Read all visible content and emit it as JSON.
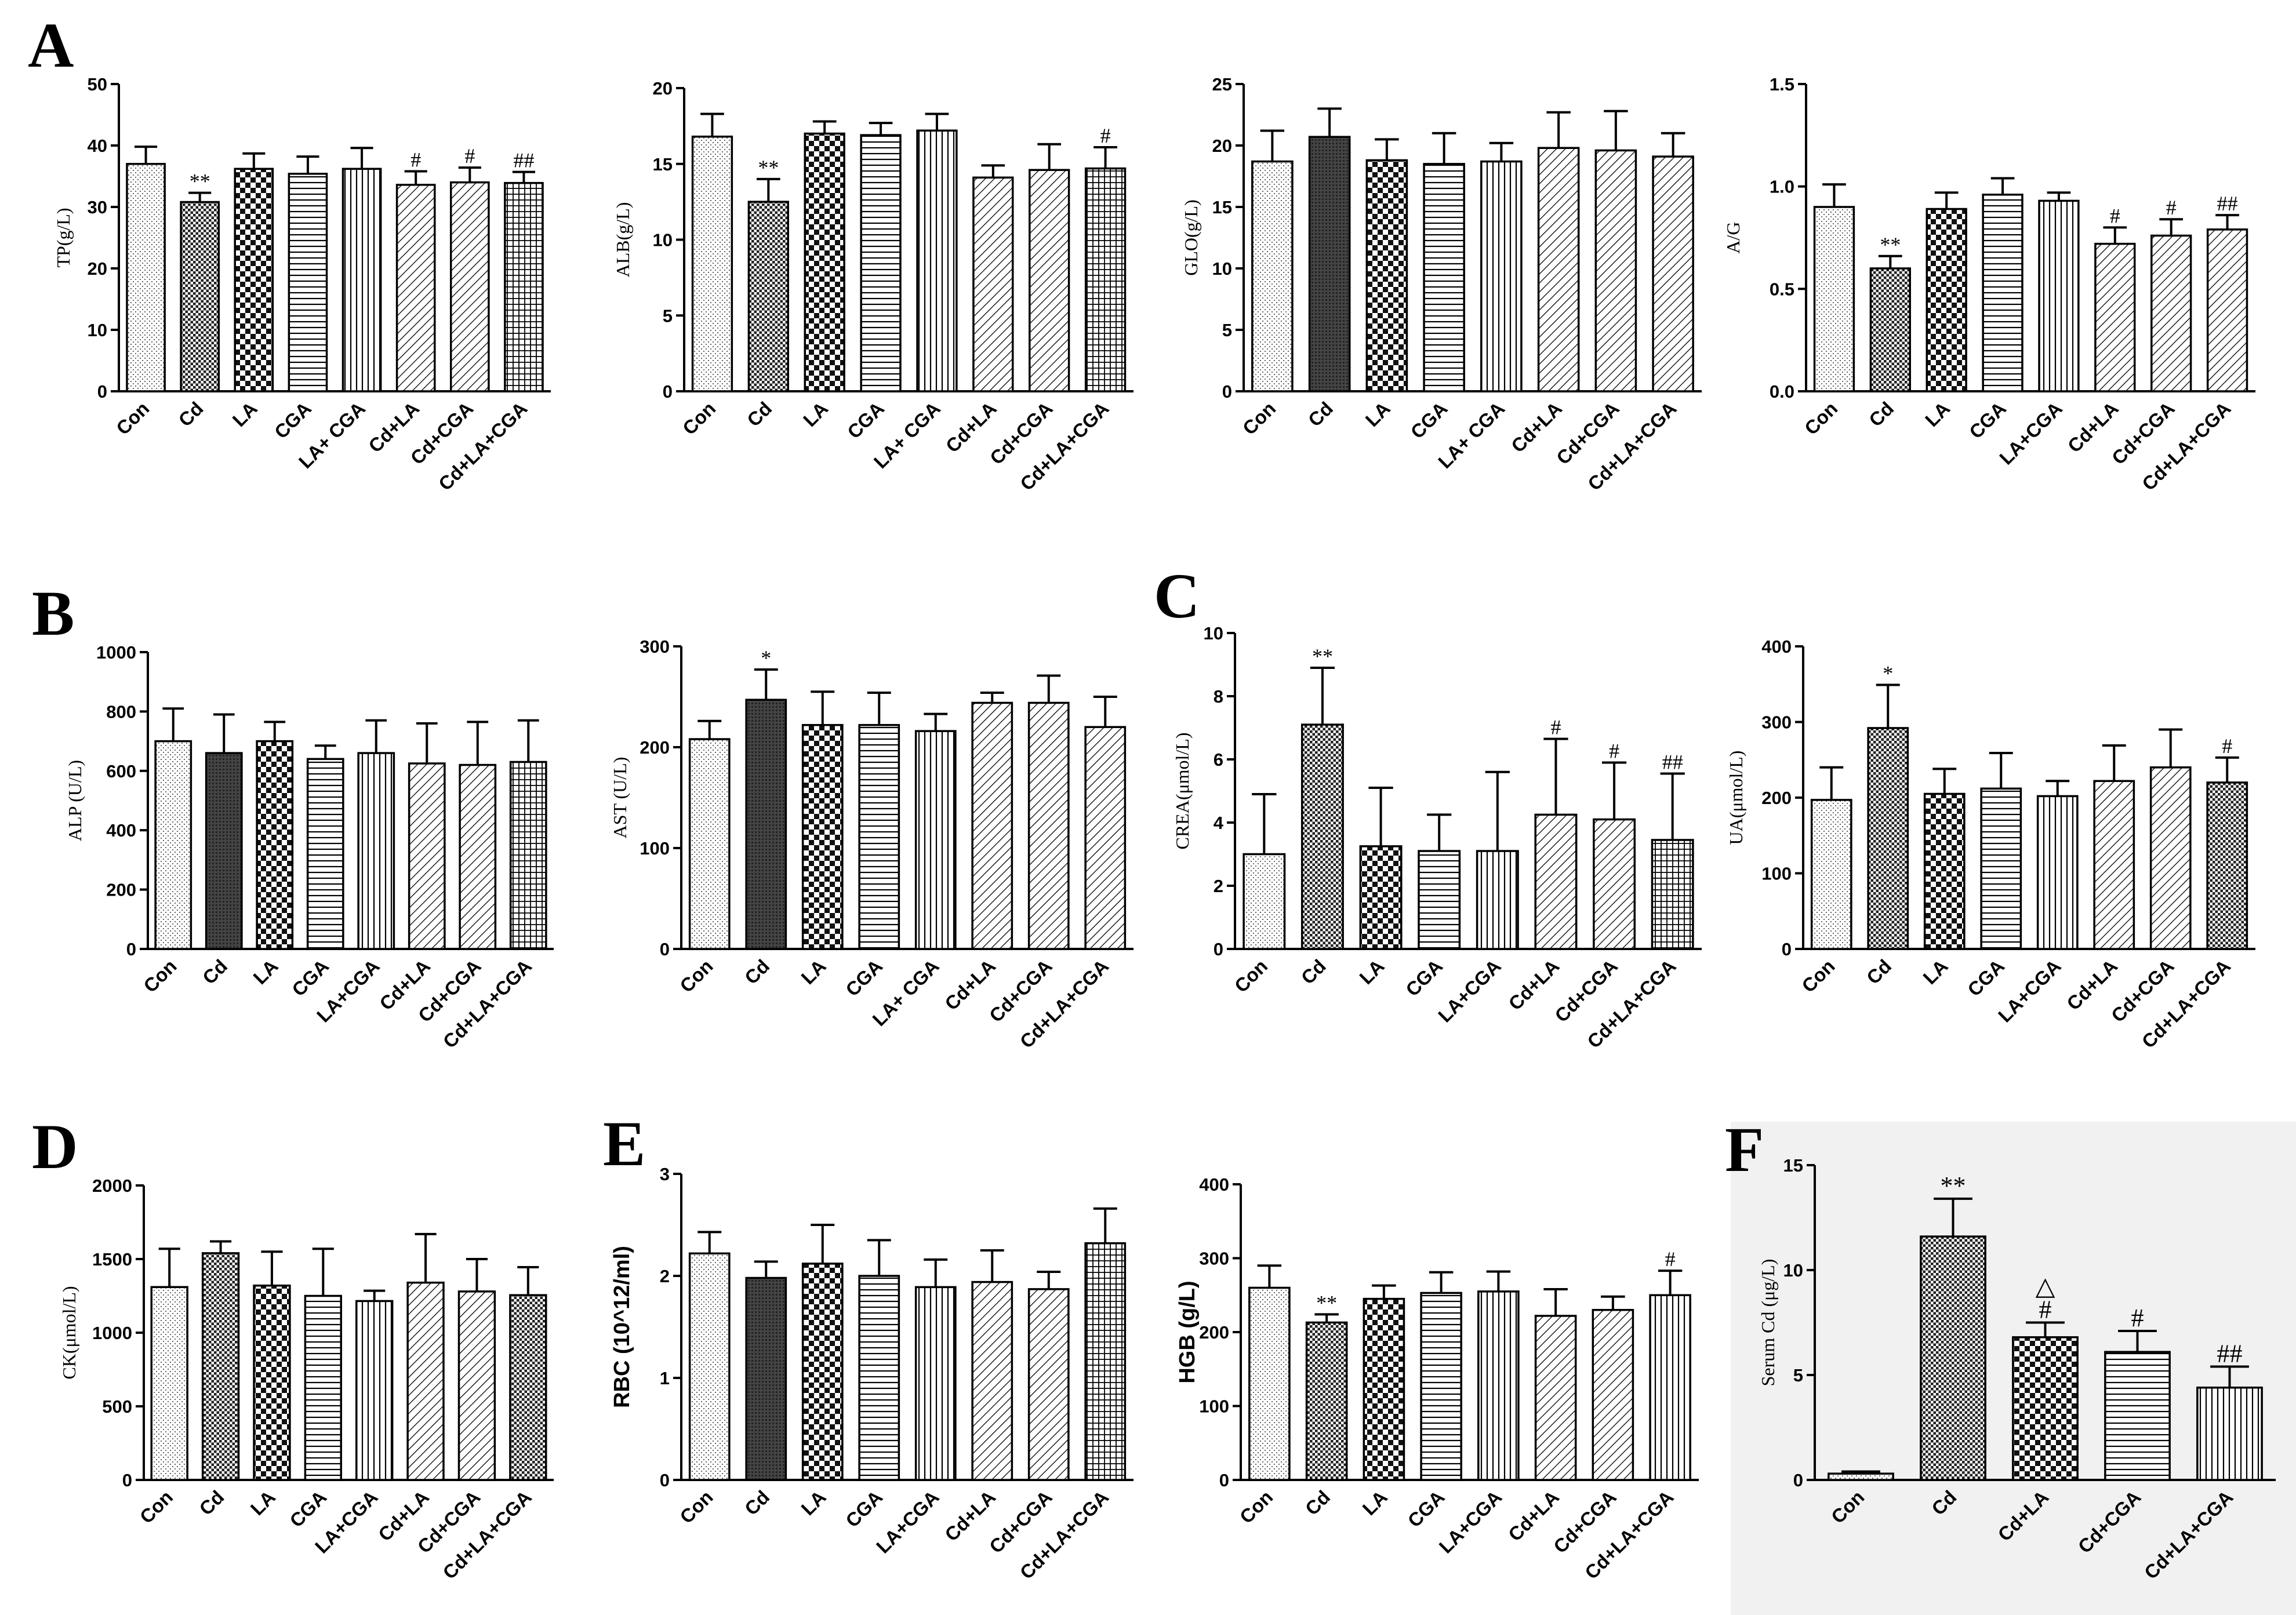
{
  "figure": {
    "panel_labels": [
      {
        "text": "A",
        "x": 48,
        "y": 115
      },
      {
        "text": "B",
        "x": 55,
        "y": 1095
      },
      {
        "text": "C",
        "x": 1990,
        "y": 1065
      },
      {
        "text": "D",
        "x": 55,
        "y": 2015
      },
      {
        "text": "E",
        "x": 1040,
        "y": 2010
      },
      {
        "text": "F",
        "x": 2975,
        "y": 2020
      }
    ]
  },
  "colors": {
    "background_panel_F": "#f1f1f1",
    "bar_fill": "#ffffff",
    "ink": "#000000"
  },
  "chart_data": [
    {
      "id": "tp",
      "type": "bar",
      "title": "",
      "ylabel": "TP(g/L)",
      "ylim": [
        0,
        50
      ],
      "yticks": [
        0,
        10,
        20,
        30,
        40,
        50
      ],
      "categories": [
        "Con",
        "Cd",
        "LA",
        "CGA",
        "LA+ CGA",
        "Cd+LA",
        "Cd+CGA",
        "Cd+LA+CGA"
      ],
      "values": [
        37,
        30.8,
        36.2,
        35.4,
        36.2,
        33.6,
        34,
        33.9
      ],
      "errors": [
        2.8,
        1.5,
        2.5,
        2.8,
        3.4,
        2.2,
        2.4,
        1.8
      ],
      "annotations": [
        "",
        "**",
        "",
        "",
        "",
        "#",
        "#",
        "##"
      ],
      "patterns": [
        "dots",
        "check",
        "bigcheck",
        "hlines",
        "vlines",
        "diag",
        "diag",
        "grid"
      ]
    },
    {
      "id": "alb",
      "type": "bar",
      "title": "",
      "ylabel": "ALB(g/L)",
      "ylim": [
        0,
        20
      ],
      "yticks": [
        0,
        5,
        10,
        15,
        20
      ],
      "categories": [
        "Con",
        "Cd",
        "LA",
        "CGA",
        "LA+ CGA",
        "Cd+LA",
        "Cd+CGA",
        "Cd+LA+CGA"
      ],
      "values": [
        16.8,
        12.5,
        17,
        16.9,
        17.2,
        14.1,
        14.6,
        14.7
      ],
      "errors": [
        1.5,
        1.5,
        0.8,
        0.8,
        1.1,
        0.8,
        1.7,
        1.4
      ],
      "annotations": [
        "",
        "**",
        "",
        "",
        "",
        "",
        "",
        "#"
      ],
      "patterns": [
        "dots",
        "check",
        "bigcheck",
        "hlines",
        "vlines",
        "diag",
        "diag",
        "grid"
      ]
    },
    {
      "id": "glo",
      "type": "bar",
      "title": "",
      "ylabel": "GLO(g/L)",
      "ylim": [
        0,
        25
      ],
      "yticks": [
        0,
        5,
        10,
        15,
        20,
        25
      ],
      "categories": [
        "Con",
        "Cd",
        "LA",
        "CGA",
        "LA+ CGA",
        "Cd+LA",
        "Cd+CGA",
        "Cd+LA+CGA"
      ],
      "values": [
        18.7,
        20.7,
        18.8,
        18.5,
        18.7,
        19.8,
        19.6,
        19.1
      ],
      "errors": [
        2.5,
        2.3,
        1.7,
        2.5,
        1.5,
        2.9,
        3.2,
        1.9
      ],
      "annotations": [
        "",
        "",
        "",
        "",
        "",
        "",
        "",
        ""
      ],
      "patterns": [
        "dots",
        "dark",
        "bigcheck",
        "hlines",
        "vlines",
        "diag",
        "diag",
        "diag"
      ]
    },
    {
      "id": "ag",
      "type": "bar",
      "title": "",
      "ylabel": "A/G",
      "ylim": [
        0,
        1.5
      ],
      "yticks": [
        "0.0",
        "0.5",
        "1.0",
        "1.5"
      ],
      "categories": [
        "Con",
        "Cd",
        "LA",
        "CGA",
        "LA+CGA",
        "Cd+LA",
        "Cd+CGA",
        "Cd+LA+CGA"
      ],
      "values": [
        0.9,
        0.6,
        0.89,
        0.96,
        0.93,
        0.72,
        0.76,
        0.79
      ],
      "errors": [
        0.11,
        0.06,
        0.08,
        0.08,
        0.04,
        0.08,
        0.08,
        0.07
      ],
      "annotations": [
        "",
        "**",
        "",
        "",
        "",
        "#",
        "#",
        "##"
      ],
      "patterns": [
        "dots",
        "check",
        "bigcheck",
        "hlines",
        "vlines",
        "diag",
        "diag",
        "diag"
      ]
    },
    {
      "id": "alp",
      "type": "bar",
      "title": "",
      "ylabel": "ALP (U/L)",
      "ylim": [
        0,
        1000
      ],
      "yticks": [
        0,
        200,
        400,
        600,
        800,
        1000
      ],
      "categories": [
        "Con",
        "Cd",
        "LA",
        "CGA",
        "LA+CGA",
        "Cd+LA",
        "Cd+CGA",
        "Cd+LA+CGA"
      ],
      "values": [
        700,
        660,
        700,
        640,
        660,
        625,
        620,
        630
      ],
      "errors": [
        110,
        130,
        65,
        45,
        110,
        135,
        145,
        140
      ],
      "annotations": [
        "",
        "",
        "",
        "",
        "",
        "",
        "",
        ""
      ],
      "patterns": [
        "dots",
        "dark",
        "bigcheck",
        "hlines",
        "vlines",
        "diag",
        "diag",
        "grid"
      ]
    },
    {
      "id": "ast",
      "type": "bar",
      "title": "",
      "ylabel": "AST (U/L)",
      "ylim": [
        0,
        300
      ],
      "yticks": [
        0,
        100,
        200,
        300
      ],
      "categories": [
        "Con",
        "Cd",
        "LA",
        "CGA",
        "LA+ CGA",
        "Cd+LA",
        "Cd+CGA",
        "Cd+LA+CGA"
      ],
      "values": [
        208,
        247,
        222,
        222,
        216,
        244,
        244,
        220
      ],
      "errors": [
        18,
        30,
        33,
        32,
        17,
        10,
        27,
        30
      ],
      "annotations": [
        "",
        "*",
        "",
        "",
        "",
        "",
        "",
        ""
      ],
      "patterns": [
        "dots",
        "dark",
        "bigcheck",
        "hlines",
        "vlines",
        "diag",
        "diag",
        "diag"
      ]
    },
    {
      "id": "crea",
      "type": "bar",
      "title": "",
      "ylabel": "CREA(μmol/L)",
      "ylim": [
        0,
        10
      ],
      "yticks": [
        0,
        2,
        4,
        6,
        8,
        10
      ],
      "categories": [
        "Con",
        "Cd",
        "LA",
        "CGA",
        "LA+CGA",
        "Cd+LA",
        "Cd+CGA",
        "Cd+LA+CGA"
      ],
      "values": [
        3,
        7.1,
        3.25,
        3.1,
        3.1,
        4.25,
        4.1,
        3.45
      ],
      "errors": [
        1.9,
        1.8,
        1.85,
        1.15,
        2.5,
        2.4,
        1.8,
        2.1
      ],
      "annotations": [
        "",
        "**",
        "",
        "",
        "",
        "#",
        "#",
        "##"
      ],
      "patterns": [
        "dots",
        "check",
        "bigcheck",
        "hlines",
        "vlines",
        "diag",
        "diag",
        "grid"
      ]
    },
    {
      "id": "ua",
      "type": "bar",
      "title": "",
      "ylabel": "UA(μmol/L)",
      "ylim": [
        0,
        400
      ],
      "yticks": [
        0,
        100,
        200,
        300,
        400
      ],
      "categories": [
        "Con",
        "Cd",
        "LA",
        "CGA",
        "LA+CGA",
        "Cd+LA",
        "Cd+CGA",
        "Cd+LA+CGA"
      ],
      "values": [
        197,
        292,
        205,
        212,
        202,
        222,
        240,
        220
      ],
      "errors": [
        43,
        57,
        33,
        47,
        20,
        47,
        50,
        33
      ],
      "annotations": [
        "",
        "*",
        "",
        "",
        "",
        "",
        "",
        "#"
      ],
      "patterns": [
        "dots",
        "check",
        "bigcheck",
        "hlines",
        "vlines",
        "diag",
        "diag",
        "check"
      ]
    },
    {
      "id": "ck",
      "type": "bar",
      "title": "",
      "ylabel": "CK(μmol/L)",
      "ylim": [
        0,
        2000
      ],
      "yticks": [
        0,
        500,
        1000,
        1500,
        2000
      ],
      "categories": [
        "Con",
        "Cd",
        "LA",
        "CGA",
        "LA+CGA",
        "Cd+LA",
        "Cd+CGA",
        "Cd+LA+CGA"
      ],
      "values": [
        1310,
        1540,
        1320,
        1250,
        1215,
        1340,
        1280,
        1255
      ],
      "errors": [
        260,
        80,
        230,
        320,
        70,
        330,
        220,
        190
      ],
      "annotations": [
        "",
        "",
        "",
        "",
        "",
        "",
        "",
        ""
      ],
      "patterns": [
        "dots",
        "check",
        "bigcheck",
        "hlines",
        "vlines",
        "diag",
        "diag",
        "check"
      ]
    },
    {
      "id": "rbc",
      "type": "bar",
      "title": "",
      "ylabel": "RBC (10^12/ml)",
      "ylim": [
        0,
        3
      ],
      "yticks": [
        0,
        1,
        2,
        3
      ],
      "categories": [
        "Con",
        "Cd",
        "LA",
        "CGA",
        "LA+CGA",
        "Cd+LA",
        "Cd+CGA",
        "Cd+LA+CGA"
      ],
      "values": [
        2.22,
        1.98,
        2.12,
        2.0,
        1.89,
        1.94,
        1.87,
        2.32
      ],
      "errors": [
        0.21,
        0.16,
        0.38,
        0.35,
        0.27,
        0.31,
        0.17,
        0.34
      ],
      "annotations": [
        "",
        "",
        "",
        "",
        "",
        "",
        "",
        ""
      ],
      "patterns": [
        "dots",
        "dark",
        "bigcheck",
        "hlines",
        "vlines",
        "diag",
        "diag",
        "grid"
      ]
    },
    {
      "id": "hgb",
      "type": "bar",
      "title": "",
      "ylabel": "HGB (g/L)",
      "ylim": [
        0,
        400
      ],
      "yticks": [
        0,
        100,
        200,
        300,
        400
      ],
      "categories": [
        "Con",
        "Cd",
        "LA",
        "CGA",
        "LA+CGA",
        "Cd+LA",
        "Cd+CGA",
        "Cd+LA+CGA"
      ],
      "values": [
        260,
        213,
        245,
        253,
        255,
        222,
        230,
        250
      ],
      "errors": [
        30,
        11,
        18,
        28,
        27,
        36,
        18,
        33
      ],
      "annotations": [
        "",
        "**",
        "",
        "",
        "",
        "",
        "",
        "#"
      ],
      "patterns": [
        "dots",
        "check",
        "bigcheck",
        "hlines",
        "vlines",
        "diag",
        "diag",
        "vlines"
      ]
    },
    {
      "id": "serumcd",
      "type": "bar",
      "title": "",
      "ylabel": "Serum Cd (μg/L)",
      "ylim": [
        0,
        15
      ],
      "yticks": [
        0,
        5,
        10,
        15
      ],
      "categories": [
        "Con",
        "Cd",
        "Cd+LA",
        "Cd+CGA",
        "Cd+LA+CGA"
      ],
      "values": [
        0.3,
        11.6,
        6.8,
        6.1,
        4.4
      ],
      "errors": [
        0.1,
        1.8,
        0.7,
        1.0,
        1.0
      ],
      "annotations": [
        "",
        "**",
        "#",
        "#",
        "##"
      ],
      "extra_annotations": [
        "",
        "",
        "△",
        "",
        ""
      ],
      "patterns": [
        "dots",
        "check",
        "bigcheck",
        "hlines",
        "vlines"
      ]
    }
  ]
}
